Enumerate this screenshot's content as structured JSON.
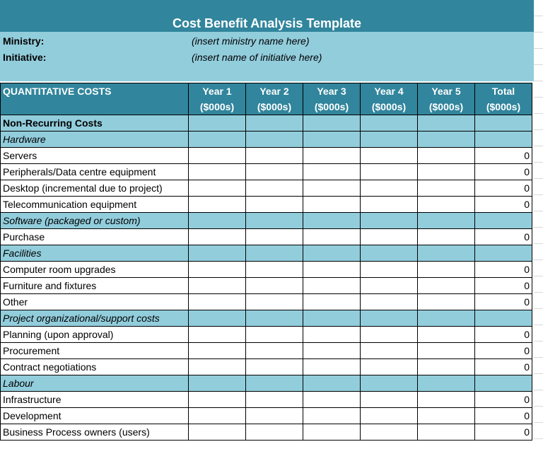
{
  "title": "Cost Benefit Analysis Template",
  "info": {
    "ministry_label": "Ministry:",
    "ministry_value": "(insert ministry name here)",
    "initiative_label": "Initiative:",
    "initiative_value": "(insert name of initiative here)"
  },
  "header": {
    "main": "QUANTITATIVE COSTS",
    "columns": [
      {
        "year": "Year 1",
        "unit": "($000s)"
      },
      {
        "year": "Year 2",
        "unit": "($000s)"
      },
      {
        "year": "Year 3",
        "unit": "($000s)"
      },
      {
        "year": "Year 4",
        "unit": "($000s)"
      },
      {
        "year": "Year 5",
        "unit": "($000s)"
      },
      {
        "year": "Total",
        "unit": "($000s)"
      }
    ]
  },
  "rows": [
    {
      "label": "Non-Recurring Costs",
      "type": "section",
      "total": ""
    },
    {
      "label": "Hardware",
      "type": "sub",
      "total": ""
    },
    {
      "label": "Servers",
      "type": "item",
      "total": "0"
    },
    {
      "label": "Peripherals/Data centre equipment",
      "type": "item",
      "total": "0"
    },
    {
      "label": "Desktop (incremental due to project)",
      "type": "item",
      "total": "0"
    },
    {
      "label": "Telecommunication equipment",
      "type": "item",
      "total": "0"
    },
    {
      "label": "Software (packaged or custom)",
      "type": "sub",
      "total": ""
    },
    {
      "label": "Purchase",
      "type": "item",
      "total": "0"
    },
    {
      "label": "Facilities",
      "type": "sub",
      "total": ""
    },
    {
      "label": "Computer room upgrades",
      "type": "item",
      "total": "0"
    },
    {
      "label": "Furniture and fixtures",
      "type": "item",
      "total": "0"
    },
    {
      "label": "Other",
      "type": "item",
      "total": "0"
    },
    {
      "label": "Project organizational/support costs",
      "type": "sub",
      "total": ""
    },
    {
      "label": "Planning (upon approval)",
      "type": "item",
      "total": "0"
    },
    {
      "label": "Procurement",
      "type": "item",
      "total": "0"
    },
    {
      "label": "Contract negotiations",
      "type": "item",
      "total": "0"
    },
    {
      "label": "Labour",
      "type": "sub",
      "total": ""
    },
    {
      "label": "Infrastructure",
      "type": "item",
      "total": "0"
    },
    {
      "label": "Development",
      "type": "item",
      "total": "0"
    },
    {
      "label": "Business Process owners (users)",
      "type": "item",
      "total": "0"
    }
  ]
}
